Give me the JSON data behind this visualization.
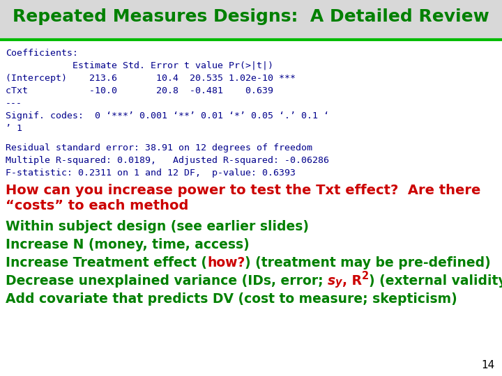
{
  "title": "Repeated Measures Designs:  A Detailed Review",
  "title_color": "#008000",
  "bg_color": "#ffffff",
  "header_bg": "#d8d8d8",
  "line_color": "#00bb00",
  "mono_color": "#00008b",
  "red_color": "#cc0000",
  "green_color": "#008000",
  "title_fontsize": 18,
  "mono_fontsize": 9.5,
  "bullet_fontsize": 13.5,
  "red_fontsize": 14,
  "code_lines": [
    "Coefficients:",
    "            Estimate Std. Error t value Pr(>|t|)",
    "(Intercept)    213.6       10.4  20.535 1.02e-10 ***",
    "cTxt           -10.0       20.8  -0.481    0.639",
    "---",
    "Signif. codes:  0 ‘***’ 0.001 ‘**’ 0.01 ‘*’ 0.05 ‘.’ 0.1 ‘",
    "’ 1"
  ],
  "residual_lines": [
    "Residual standard error: 38.91 on 12 degrees of freedom",
    "Multiple R-squared: 0.0189,   Adjusted R-squared: -0.06286",
    "F-statistic: 0.2311 on 1 and 12 DF,  p-value: 0.6393"
  ],
  "red_q_line1": "How can you increase power to test the Txt effect?  Are there",
  "red_q_line2": "“costs” to each method",
  "page_num": "14"
}
